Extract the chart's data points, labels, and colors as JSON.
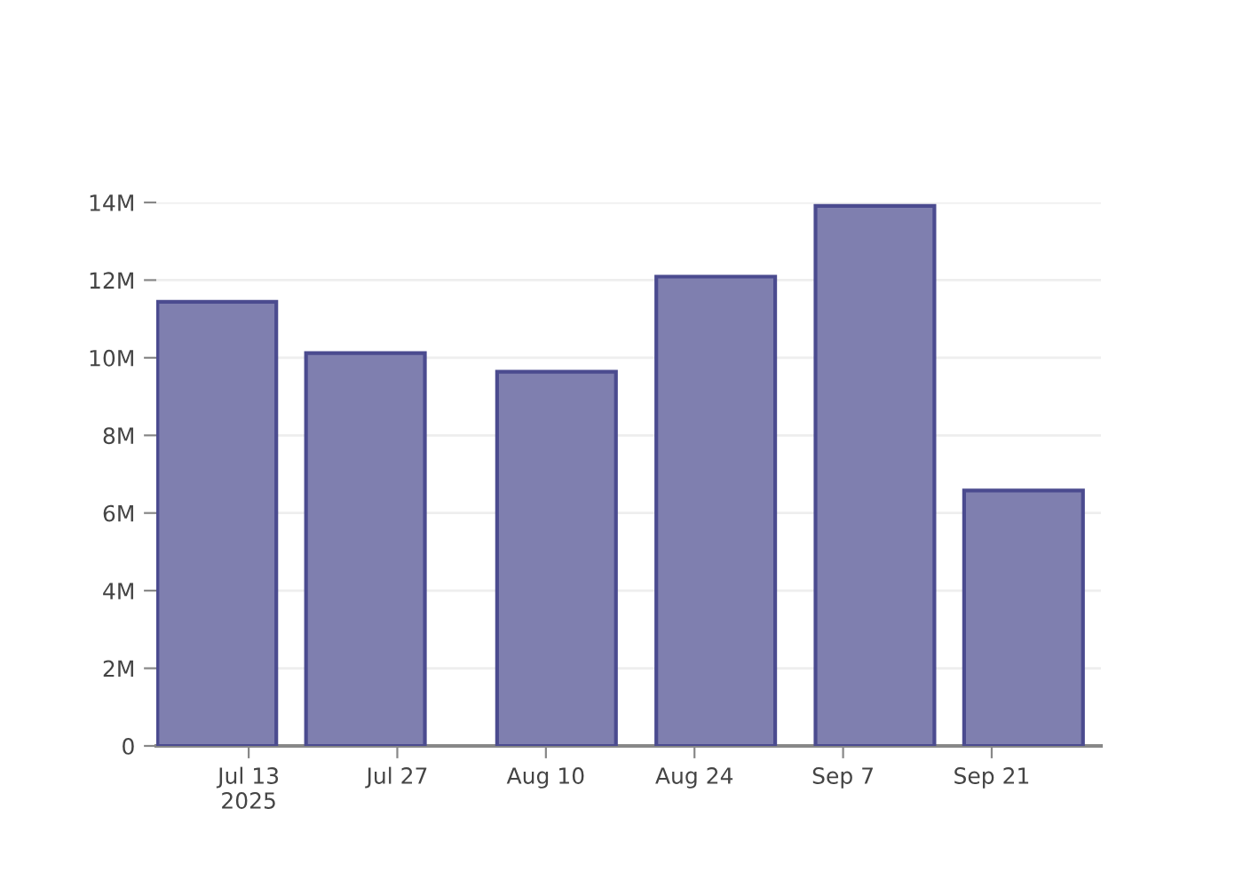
{
  "chart_data": {
    "type": "bar",
    "x": [
      "2025-07-10",
      "2025-07-24",
      "2025-08-11",
      "2025-08-26",
      "2025-09-10",
      "2025-09-24"
    ],
    "values": [
      11.44,
      10.12,
      9.64,
      12.09,
      13.91,
      6.58
    ],
    "color": "#7f7faf",
    "xlim": [
      "2025-07-04T07:00",
      "2025-10-01T07:00"
    ],
    "xticks": [
      {
        "value": "2025-07-13",
        "label": "Jul 13\n2025"
      },
      {
        "value": "2025-07-27",
        "label": "Jul 27"
      },
      {
        "value": "2025-08-10",
        "label": "Aug 10"
      },
      {
        "value": "2025-08-24",
        "label": "Aug 24"
      },
      {
        "value": "2025-09-07",
        "label": "Sep 7"
      },
      {
        "value": "2025-09-21",
        "label": "Sep 21"
      }
    ],
    "ylim": [
      0,
      14
    ],
    "yticks": [
      {
        "value": 0,
        "label": "0"
      },
      {
        "value": 2,
        "label": "2M"
      },
      {
        "value": 4,
        "label": "4M"
      },
      {
        "value": 6,
        "label": "6M"
      },
      {
        "value": 8,
        "label": "8M"
      },
      {
        "value": 10,
        "label": "10M"
      },
      {
        "value": 12,
        "label": "12M"
      },
      {
        "value": 14,
        "label": "14M"
      }
    ],
    "grid": "y"
  }
}
